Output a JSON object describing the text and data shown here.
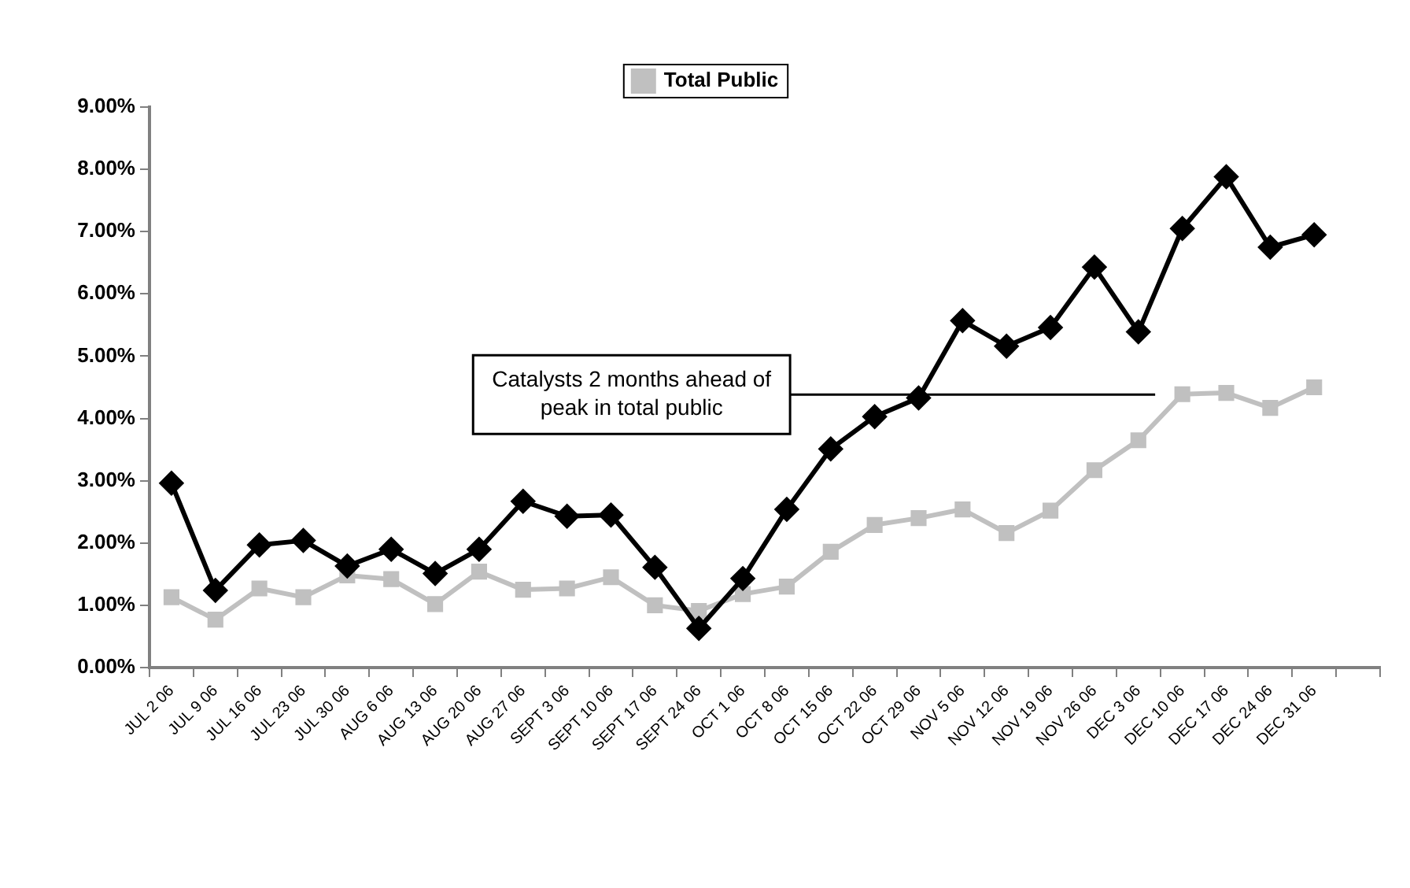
{
  "chart_data": {
    "type": "line",
    "categories": [
      "JUL 2 06",
      "JUL 9 06",
      "JUL 16 06",
      "JUL 23 06",
      "JUL 30 06",
      "AUG 6 06",
      "AUG 13 06",
      "AUG 20 06",
      "AUG 27 06",
      "SEPT 3 06",
      "SEPT 10 06",
      "SEPT 17 06",
      "SEPT 24 06",
      "OCT 1 06",
      "OCT 8 06",
      "OCT 15 06",
      "OCT 22 06",
      "OCT 29 06",
      "NOV 5 06",
      "NOV 12 06",
      "NOV 19 06",
      "NOV 26 06",
      "DEC 3 06",
      "DEC 10 06",
      "DEC 17 06",
      "DEC 24 06",
      "DEC 31 06",
      null
    ],
    "series": [
      {
        "color": "#000000",
        "marker": "diamond",
        "values": [
          2.96,
          1.24,
          1.97,
          2.04,
          1.63,
          1.9,
          1.51,
          1.9,
          2.67,
          2.43,
          2.45,
          1.61,
          0.63,
          1.43,
          2.54,
          3.51,
          4.03,
          4.33,
          5.57,
          5.16,
          5.46,
          6.43,
          5.39,
          7.05,
          7.88,
          6.75,
          6.95,
          null
        ]
      },
      {
        "name": "Total Public",
        "color": "#c0c0c0",
        "marker": "square",
        "values": [
          1.13,
          0.77,
          1.27,
          1.13,
          1.48,
          1.42,
          1.02,
          1.54,
          1.25,
          1.27,
          1.45,
          1.0,
          0.91,
          1.18,
          1.3,
          1.86,
          2.29,
          2.4,
          2.54,
          2.16,
          2.52,
          3.17,
          3.65,
          4.39,
          4.41,
          4.17,
          4.5,
          null
        ]
      }
    ],
    "ylim": [
      0,
      9
    ],
    "yticks": [
      {
        "value": 0,
        "label": "0.00%"
      },
      {
        "value": 1,
        "label": "1.00%"
      },
      {
        "value": 2,
        "label": "2.00%"
      },
      {
        "value": 3,
        "label": "3.00%"
      },
      {
        "value": 4,
        "label": "4.00%"
      },
      {
        "value": 5,
        "label": "5.00%"
      },
      {
        "value": 6,
        "label": "6.00%"
      },
      {
        "value": 7,
        "label": "7.00%"
      },
      {
        "value": 8,
        "label": "8.00%"
      },
      {
        "value": 9,
        "label": "9.00%"
      }
    ],
    "grid": false,
    "legend": "top",
    "annotations": [
      "Catalysts 2 months ahead of peak in total public"
    ]
  }
}
